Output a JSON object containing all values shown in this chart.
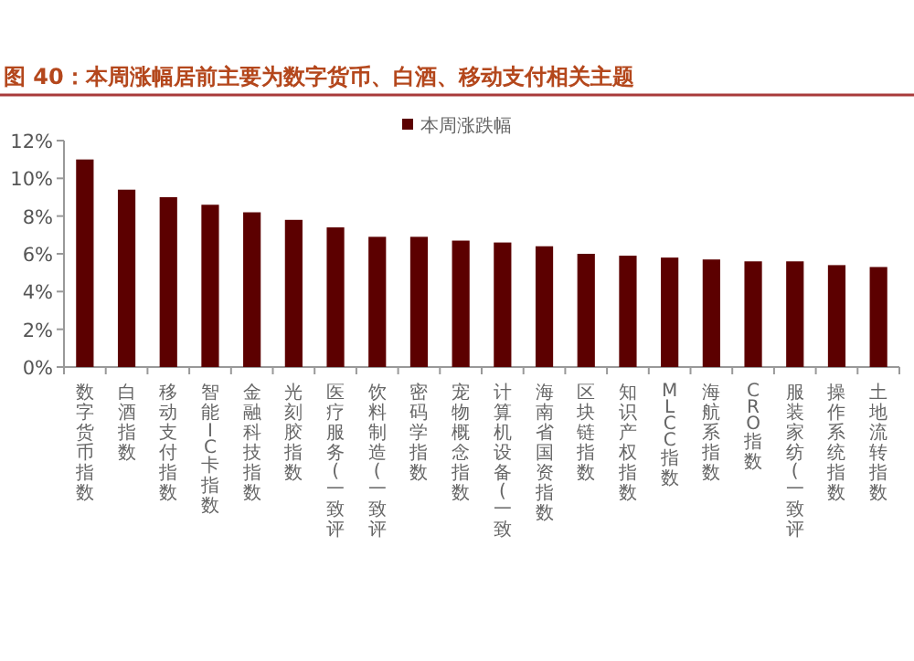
{
  "chart_data": {
    "type": "bar",
    "title": "图 40：本周涨幅居前主要为数字货币、白酒、移动支付相关主题",
    "categories": [
      "数字货币指数",
      "白酒指数",
      "移动支付指数",
      "智能IC卡指数",
      "金融科技指数",
      "光刻胶指数",
      "医疗服务(一致评",
      "饮料制造(一致评",
      "密码学指数",
      "宠物概念指数",
      "计算机设备(一致",
      "海南省国资指数",
      "区块链指数",
      "知识产权指数",
      "MLCC指数",
      "海航系指数",
      "CRO指数",
      "服装家纺(一致评",
      "操作系统指数",
      "土地流转指数"
    ],
    "series": [
      {
        "name": "本周涨跌幅",
        "color": "#5c0000",
        "values": [
          11.0,
          9.4,
          9.0,
          8.6,
          8.2,
          7.8,
          7.4,
          6.9,
          6.9,
          6.7,
          6.6,
          6.4,
          6.0,
          5.9,
          5.8,
          5.7,
          5.6,
          5.6,
          5.4,
          5.3
        ]
      }
    ],
    "ylim": [
      0,
      12
    ],
    "yticks": [
      {
        "value": 0,
        "label": "0%"
      },
      {
        "value": 2,
        "label": "2%"
      },
      {
        "value": 4,
        "label": "4%"
      },
      {
        "value": 6,
        "label": "6%"
      },
      {
        "value": 8,
        "label": "8%"
      },
      {
        "value": 10,
        "label": "10%"
      },
      {
        "value": 12,
        "label": "12%"
      }
    ],
    "grid": false,
    "legend": "top"
  }
}
